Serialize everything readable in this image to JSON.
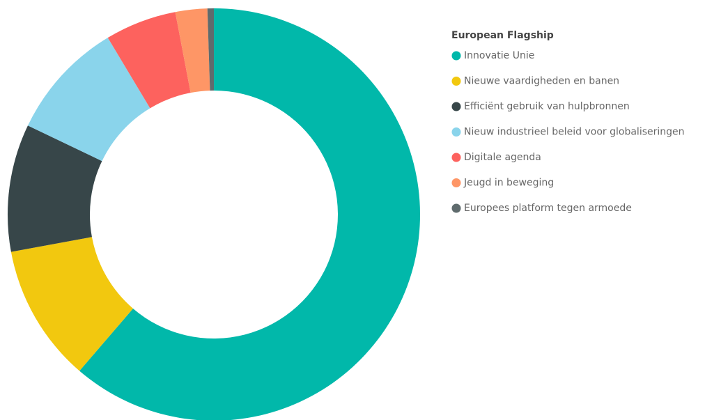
{
  "chart_data": {
    "type": "donut",
    "legend_title": "European Flagship",
    "categories": [
      "Innovatie Unie",
      "Nieuwe vaardigheden en banen",
      "Efficiënt gebruik van hulpbronnen",
      "Nieuw industrieel beleid voor globaliseringen",
      "Digitale agenda",
      "Jeugd in beweging",
      "Europees platform tegen armoede"
    ],
    "values": [
      61.3,
      10.8,
      10.0,
      9.3,
      5.6,
      2.5,
      0.5
    ],
    "colors": [
      "#01B8AA",
      "#F2C80F",
      "#374649",
      "#8AD4EB",
      "#FD625E",
      "#FE9666",
      "#5F6B6D"
    ],
    "legend": "right"
  }
}
